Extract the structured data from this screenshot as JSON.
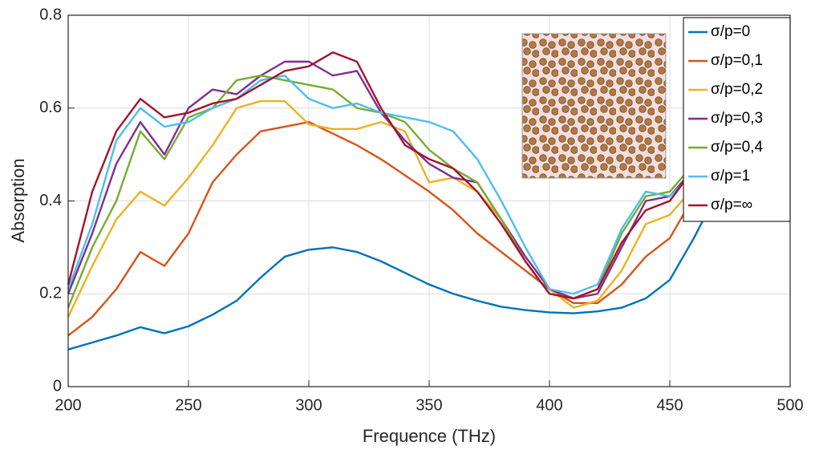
{
  "chart_data": {
    "type": "line",
    "x_label": "Frequence (THz)",
    "y_label": "Absorption",
    "x": [
      200,
      210,
      220,
      230,
      240,
      250,
      260,
      270,
      280,
      290,
      300,
      310,
      320,
      330,
      340,
      350,
      360,
      370,
      380,
      390,
      400,
      410,
      420,
      430,
      440,
      450,
      460,
      470,
      480,
      490,
      500
    ],
    "series": [
      {
        "name": "σ/p=0",
        "color": "#0072bd",
        "values": [
          0.08,
          0.095,
          0.11,
          0.128,
          0.115,
          0.13,
          0.155,
          0.185,
          0.235,
          0.28,
          0.295,
          0.3,
          0.29,
          0.27,
          0.245,
          0.22,
          0.2,
          0.185,
          0.172,
          0.165,
          0.16,
          0.158,
          0.162,
          0.17,
          0.19,
          0.23,
          0.32,
          0.42,
          0.52,
          0.6,
          0.63
        ]
      },
      {
        "name": "σ/p=0,1",
        "color": "#d95319",
        "values": [
          0.11,
          0.15,
          0.21,
          0.29,
          0.26,
          0.33,
          0.44,
          0.5,
          0.55,
          0.56,
          0.57,
          0.545,
          0.52,
          0.49,
          0.455,
          0.42,
          0.38,
          0.33,
          0.29,
          0.25,
          0.21,
          0.18,
          0.18,
          0.22,
          0.28,
          0.32,
          0.41,
          0.5,
          0.6,
          0.7,
          0.76
        ]
      },
      {
        "name": "σ/p=0,2",
        "color": "#edb120",
        "values": [
          0.15,
          0.26,
          0.36,
          0.42,
          0.39,
          0.45,
          0.52,
          0.6,
          0.615,
          0.615,
          0.565,
          0.555,
          0.555,
          0.57,
          0.55,
          0.44,
          0.45,
          0.42,
          0.36,
          0.28,
          0.21,
          0.17,
          0.185,
          0.25,
          0.35,
          0.37,
          0.43,
          0.55,
          0.65,
          0.73,
          0.77
        ]
      },
      {
        "name": "σ/p=0,3",
        "color": "#7e2f8e",
        "values": [
          0.2,
          0.33,
          0.48,
          0.57,
          0.5,
          0.6,
          0.64,
          0.63,
          0.67,
          0.7,
          0.7,
          0.67,
          0.68,
          0.59,
          0.53,
          0.48,
          0.45,
          0.44,
          0.36,
          0.28,
          0.21,
          0.19,
          0.2,
          0.3,
          0.4,
          0.41,
          0.47,
          0.58,
          0.67,
          0.73,
          0.75
        ]
      },
      {
        "name": "σ/p=0,4",
        "color": "#77ac30",
        "values": [
          0.17,
          0.3,
          0.4,
          0.55,
          0.49,
          0.58,
          0.6,
          0.66,
          0.67,
          0.66,
          0.65,
          0.64,
          0.6,
          0.59,
          0.57,
          0.51,
          0.47,
          0.44,
          0.36,
          0.27,
          0.2,
          0.19,
          0.21,
          0.33,
          0.41,
          0.42,
          0.48,
          0.6,
          0.68,
          0.73,
          0.76
        ]
      },
      {
        "name": "σ/p=1",
        "color": "#4dbeee",
        "values": [
          0.21,
          0.35,
          0.53,
          0.6,
          0.56,
          0.57,
          0.6,
          0.62,
          0.66,
          0.67,
          0.62,
          0.6,
          0.61,
          0.59,
          0.58,
          0.57,
          0.55,
          0.49,
          0.4,
          0.3,
          0.21,
          0.2,
          0.22,
          0.34,
          0.42,
          0.41,
          0.46,
          0.58,
          0.67,
          0.72,
          0.74
        ]
      },
      {
        "name": "σ/p=∞",
        "color": "#a2142f",
        "values": [
          0.22,
          0.42,
          0.55,
          0.62,
          0.58,
          0.59,
          0.61,
          0.62,
          0.65,
          0.68,
          0.69,
          0.72,
          0.7,
          0.6,
          0.52,
          0.49,
          0.47,
          0.42,
          0.35,
          0.27,
          0.2,
          0.19,
          0.21,
          0.31,
          0.38,
          0.4,
          0.47,
          0.58,
          0.67,
          0.72,
          0.76
        ]
      }
    ],
    "xlim": [
      200,
      500
    ],
    "ylim": [
      0,
      0.8
    ],
    "xticks": [
      200,
      250,
      300,
      350,
      400,
      450,
      500
    ],
    "yticks": [
      0,
      0.2,
      0.4,
      0.6,
      0.8
    ],
    "grid": true,
    "legend_location": "northeast"
  }
}
